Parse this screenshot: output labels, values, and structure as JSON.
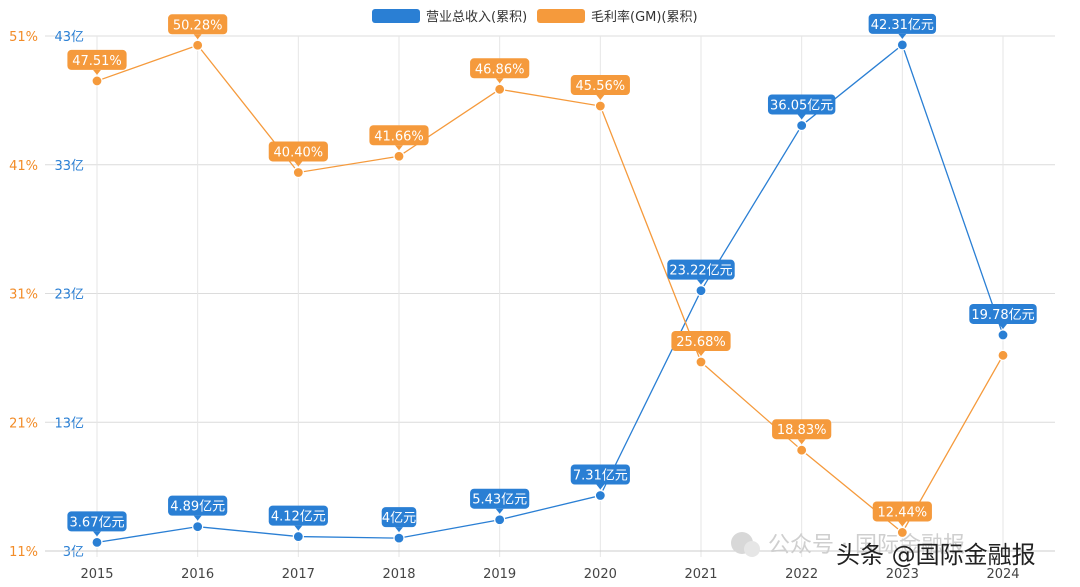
{
  "chart_data": {
    "type": "line",
    "categories": [
      "2015",
      "2016",
      "2017",
      "2018",
      "2019",
      "2020",
      "2021",
      "2022",
      "2023",
      "2024"
    ],
    "series": [
      {
        "name": "营业总收入(累积)",
        "axis": "right",
        "color": "#2a7fd4",
        "values": [
          3.67,
          4.89,
          4.12,
          4.0,
          5.43,
          7.31,
          23.22,
          36.05,
          42.31,
          19.78
        ],
        "labels": [
          "3.67亿元",
          "4.89亿元",
          "4.12亿元",
          "4亿元",
          "5.43亿元",
          "7.31亿元",
          "23.22亿元",
          "36.05亿元",
          "42.31亿元",
          "19.78亿元"
        ]
      },
      {
        "name": "毛利率(GM)(累积)",
        "axis": "left",
        "color": "#f59a3c",
        "values": [
          47.51,
          50.28,
          40.4,
          41.66,
          46.86,
          45.56,
          25.68,
          18.83,
          12.44,
          26.2
        ],
        "labels": [
          "47.51%",
          "50.28%",
          "40.40%",
          "41.66%",
          "46.86%",
          "45.56%",
          "25.68%",
          "18.83%",
          "12.44%",
          ""
        ]
      }
    ],
    "y_left": {
      "ticks": [
        "51%",
        "41%",
        "31%",
        "21%",
        "11%"
      ],
      "values": [
        51,
        41,
        31,
        21,
        11
      ],
      "ylim": [
        11,
        51
      ]
    },
    "y_right": {
      "ticks": [
        "43亿",
        "33亿",
        "23亿",
        "13亿",
        "3亿"
      ],
      "values": [
        43,
        33,
        23,
        13,
        3
      ],
      "ylim": [
        3,
        43
      ]
    },
    "grid": true,
    "legend_position": "top-center"
  },
  "watermark": {
    "text_light": "公众号 · 国际金融报",
    "text_dark": "头条 @国际金融报"
  }
}
